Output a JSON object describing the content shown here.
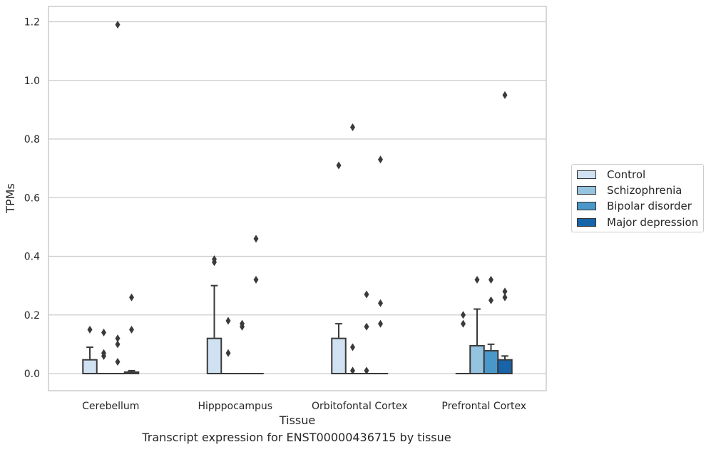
{
  "chart_data": {
    "type": "box",
    "title": "",
    "caption": "Transcript expression for ENST00000436715 by tissue",
    "xlabel": "Tissue",
    "ylabel": "TPMs",
    "ylim": [
      -0.06,
      1.25
    ],
    "yticks": [
      0.0,
      0.2,
      0.4,
      0.6,
      0.8,
      1.0,
      1.2
    ],
    "ytick_labels": [
      "0.0",
      "0.2",
      "0.4",
      "0.6",
      "0.8",
      "1.0",
      "1.2"
    ],
    "grid": "horizontal",
    "legend_position": "right",
    "categories": [
      "Cerebellum",
      "Hipppocampus",
      "Orbitofontal Cortex",
      "Prefrontal Cortex"
    ],
    "series": [
      {
        "name": "Control",
        "color": "#d0e1f2",
        "boxes": [
          {
            "q1": 0.0,
            "median": 0.0,
            "q3": 0.047,
            "whisker_low": 0.0,
            "whisker_high": 0.09,
            "outliers": [
              0.15
            ]
          },
          {
            "q1": 0.0,
            "median": 0.0,
            "q3": 0.12,
            "whisker_low": 0.0,
            "whisker_high": 0.3,
            "outliers": [
              0.38,
              0.39
            ]
          },
          {
            "q1": 0.0,
            "median": 0.0,
            "q3": 0.12,
            "whisker_low": 0.0,
            "whisker_high": 0.17,
            "outliers": [
              0.71
            ]
          },
          {
            "q1": 0.0,
            "median": 0.0,
            "q3": 0.0,
            "whisker_low": 0.0,
            "whisker_high": 0.0,
            "outliers": [
              0.17,
              0.2
            ]
          }
        ]
      },
      {
        "name": "Schizophrenia",
        "color": "#94c4df",
        "boxes": [
          {
            "q1": 0.0,
            "median": 0.0,
            "q3": 0.0,
            "whisker_low": 0.0,
            "whisker_high": 0.0,
            "outliers": [
              0.06,
              0.07,
              0.14
            ]
          },
          {
            "q1": 0.0,
            "median": 0.0,
            "q3": 0.0,
            "whisker_low": 0.0,
            "whisker_high": 0.0,
            "outliers": [
              0.07,
              0.18
            ]
          },
          {
            "q1": 0.0,
            "median": 0.0,
            "q3": 0.0,
            "whisker_low": 0.0,
            "whisker_high": 0.0,
            "outliers": [
              0.01,
              0.09,
              0.84
            ]
          },
          {
            "q1": 0.0,
            "median": 0.0,
            "q3": 0.095,
            "whisker_low": 0.0,
            "whisker_high": 0.22,
            "outliers": [
              0.32
            ]
          }
        ]
      },
      {
        "name": "Bipolar disorder",
        "color": "#4a98c9",
        "boxes": [
          {
            "q1": 0.0,
            "median": 0.0,
            "q3": 0.0,
            "whisker_low": 0.0,
            "whisker_high": 0.0,
            "outliers": [
              0.04,
              0.1,
              0.12,
              1.19
            ]
          },
          {
            "q1": 0.0,
            "median": 0.0,
            "q3": 0.0,
            "whisker_low": 0.0,
            "whisker_high": 0.0,
            "outliers": [
              0.16,
              0.17
            ]
          },
          {
            "q1": 0.0,
            "median": 0.0,
            "q3": 0.0,
            "whisker_low": 0.0,
            "whisker_high": 0.0,
            "outliers": [
              0.01,
              0.16,
              0.27
            ]
          },
          {
            "q1": 0.0,
            "median": 0.0,
            "q3": 0.078,
            "whisker_low": 0.0,
            "whisker_high": 0.1,
            "outliers": [
              0.25,
              0.32
            ]
          }
        ]
      },
      {
        "name": "Major depression",
        "color": "#1764ab",
        "boxes": [
          {
            "q1": 0.0,
            "median": 0.0,
            "q3": 0.005,
            "whisker_low": 0.0,
            "whisker_high": 0.01,
            "outliers": [
              0.15,
              0.26
            ]
          },
          {
            "q1": 0.0,
            "median": 0.0,
            "q3": 0.0,
            "whisker_low": 0.0,
            "whisker_high": 0.0,
            "outliers": [
              0.32,
              0.46
            ]
          },
          {
            "q1": 0.0,
            "median": 0.0,
            "q3": 0.0,
            "whisker_low": 0.0,
            "whisker_high": 0.0,
            "outliers": [
              0.17,
              0.24,
              0.73
            ]
          },
          {
            "q1": 0.0,
            "median": 0.0,
            "q3": 0.047,
            "whisker_low": 0.0,
            "whisker_high": 0.06,
            "outliers": [
              0.26,
              0.28,
              0.95
            ]
          }
        ]
      }
    ]
  }
}
